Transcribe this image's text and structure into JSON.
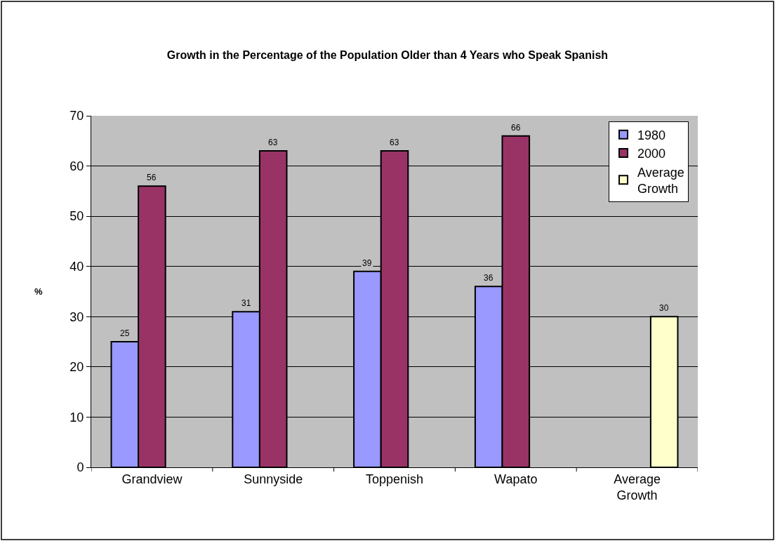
{
  "chart_data": {
    "type": "bar",
    "title": "Growth in the Percentage of the Population Older than 4 Years who Speak Spanish",
    "ylabel": "%",
    "categories": [
      "Grandview",
      "Sunnyside",
      "Toppenish",
      "Wapato",
      "Average Growth"
    ],
    "series": [
      {
        "name": "1980",
        "color": "#9999ff",
        "values": [
          25,
          31,
          39,
          36,
          null
        ]
      },
      {
        "name": "2000",
        "color": "#993366",
        "values": [
          56,
          63,
          63,
          66,
          null
        ]
      },
      {
        "name": "Average Growth",
        "color": "#ffffcc",
        "values": [
          null,
          null,
          null,
          null,
          30
        ]
      }
    ],
    "ylim": [
      0,
      70
    ],
    "yticks": [
      0,
      10,
      20,
      30,
      40,
      50,
      60,
      70
    ],
    "grid": "y",
    "legend": "top right",
    "data_labels": true
  }
}
